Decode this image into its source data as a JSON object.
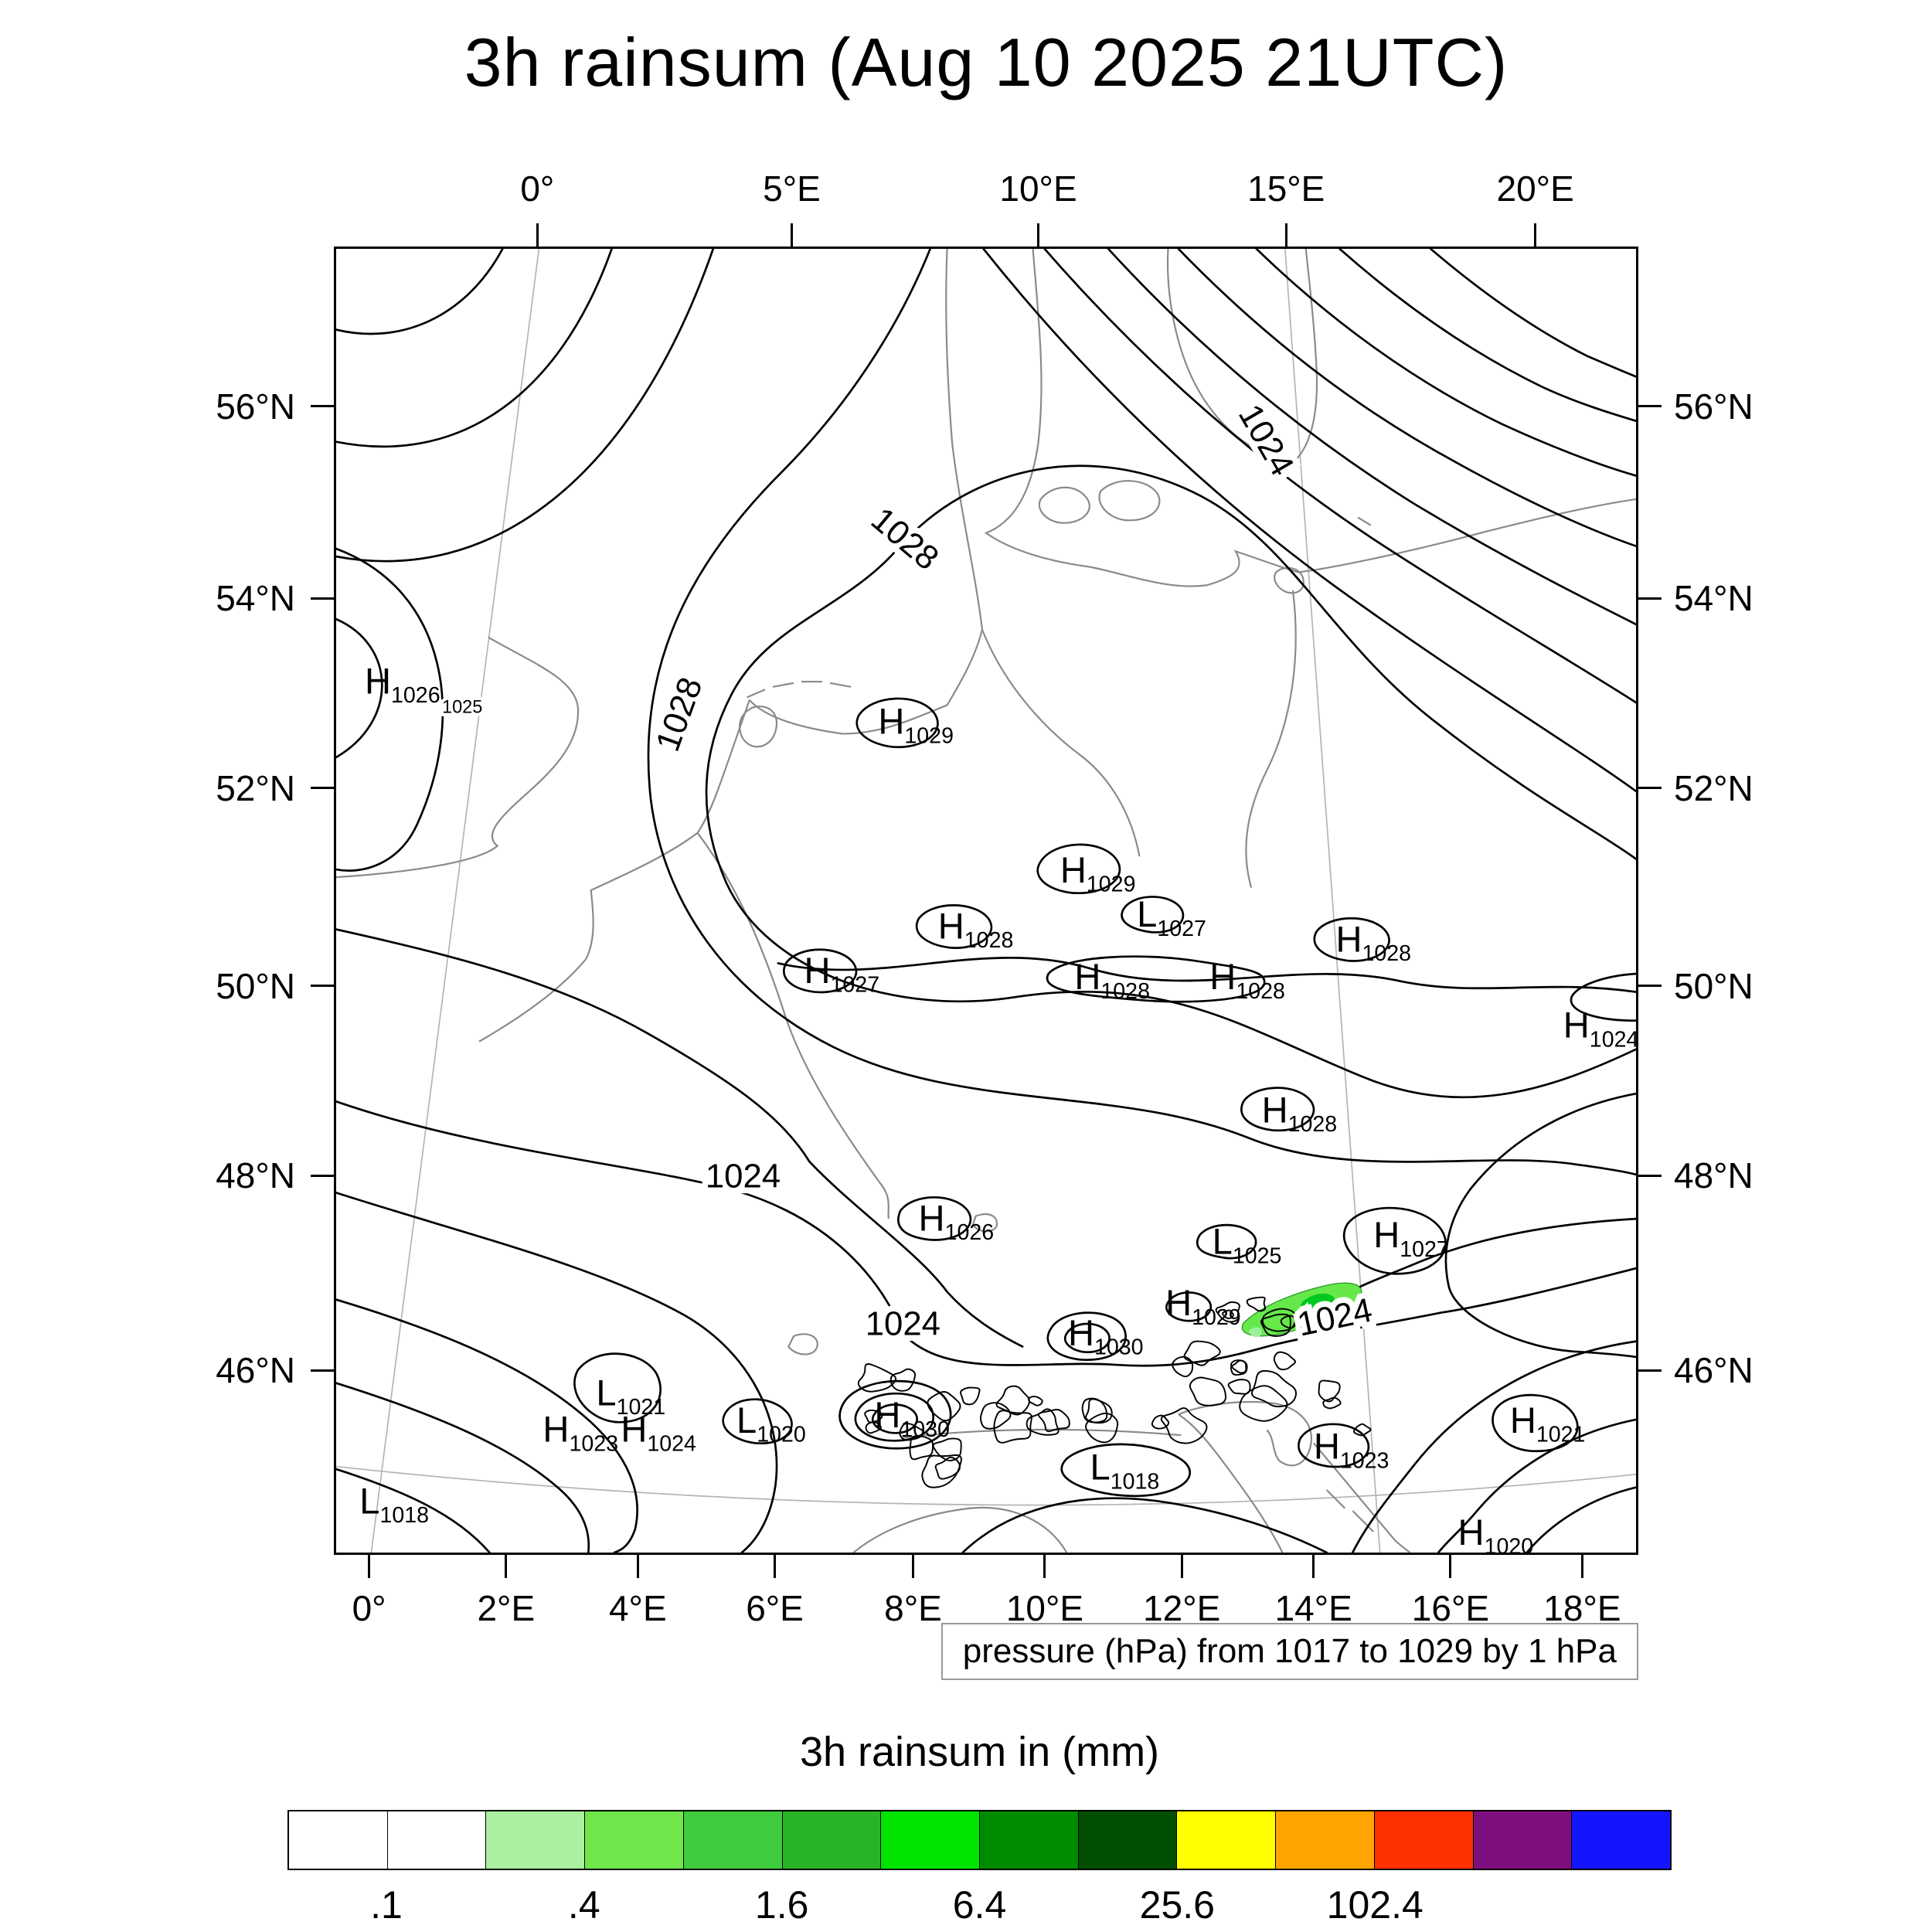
{
  "title": "3h rainsum (Aug 10 2025 21UTC)",
  "pressure_caption": "pressure (hPa) from 1017 to 1029 by 1 hPa",
  "colorbar": {
    "title": "3h rainsum in (mm)",
    "segments": [
      "#ffffff",
      "#ffffff",
      "#aaf0a0",
      "#70e64b",
      "#3ecb3e",
      "#28b428",
      "#00e400",
      "#008c00",
      "#004f00",
      "#ffff00",
      "#ffa400",
      "#ff3000",
      "#7d0e7d",
      "#1414ff"
    ],
    "tick_labels": [
      {
        "label": ".1",
        "boundary": 1
      },
      {
        "label": ".4",
        "boundary": 3
      },
      {
        "label": "1.6",
        "boundary": 5
      },
      {
        "label": "6.4",
        "boundary": 7
      },
      {
        "label": "25.6",
        "boundary": 9
      },
      {
        "label": "102.4",
        "boundary": 11
      }
    ]
  },
  "chart_data": {
    "type": "heatmap",
    "subtype": "weather_pressure_contour_map_with_rain_shading",
    "title": "3h rainsum (Aug 10 2025 21UTC)",
    "valid_time": "Aug 10 2025 21UTC",
    "contour_variable": "pressure (hPa)",
    "contour_levels": {
      "from": 1017,
      "to": 1029,
      "by": 1
    },
    "shading_variable": "3h rainsum in (mm)",
    "shading_level_boundaries": [
      0.1,
      0.2,
      0.4,
      0.8,
      1.6,
      3.2,
      6.4,
      12.8,
      25.6,
      51.2,
      102.4,
      204.8,
      409.6
    ],
    "shading_labeled_levels": [
      ".1",
      ".4",
      "1.6",
      "6.4",
      "25.6",
      "102.4"
    ],
    "axes": {
      "top": [
        {
          "label": "0°",
          "pos": 15.6
        },
        {
          "label": "5°E",
          "pos": 35.1
        },
        {
          "label": "10°E",
          "pos": 54.0
        },
        {
          "label": "15°E",
          "pos": 73.0
        },
        {
          "label": "20°E",
          "pos": 92.1
        }
      ],
      "bottom": [
        {
          "label": "0°",
          "pos": 2.7
        },
        {
          "label": "2°E",
          "pos": 13.2
        },
        {
          "label": "4°E",
          "pos": 23.3
        },
        {
          "label": "6°E",
          "pos": 33.8
        },
        {
          "label": "8°E",
          "pos": 44.4
        },
        {
          "label": "10°E",
          "pos": 54.5
        },
        {
          "label": "12°E",
          "pos": 65.0
        },
        {
          "label": "14°E",
          "pos": 75.1
        },
        {
          "label": "16°E",
          "pos": 85.6
        },
        {
          "label": "18°E",
          "pos": 95.7
        }
      ],
      "lat": [
        {
          "label": "56°N",
          "pos": 12.2
        },
        {
          "label": "54°N",
          "pos": 26.9
        },
        {
          "label": "52°N",
          "pos": 41.4
        },
        {
          "label": "50°N",
          "pos": 56.5
        },
        {
          "label": "48°N",
          "pos": 71.0
        },
        {
          "label": "46°N",
          "pos": 85.9
        }
      ]
    },
    "pressure_centers": [
      {
        "type": "H",
        "value": "1026",
        "x": 3.2,
        "y": 33.3
      },
      {
        "type": "H",
        "value": "1029",
        "x": 42.7,
        "y": 36.4
      },
      {
        "type": "H",
        "value": "1029",
        "x": 56.7,
        "y": 47.8
      },
      {
        "type": "L",
        "value": "1027",
        "x": 62.6,
        "y": 51.2
      },
      {
        "type": "H",
        "value": "1028",
        "x": 47.3,
        "y": 52.1
      },
      {
        "type": "H",
        "value": "1028",
        "x": 77.9,
        "y": 53.1
      },
      {
        "type": "H",
        "value": "1027",
        "x": 37.0,
        "y": 55.5
      },
      {
        "type": "H",
        "value": "1028",
        "x": 57.8,
        "y": 56.0
      },
      {
        "type": "H",
        "value": "1028",
        "x": 68.2,
        "y": 56.0
      },
      {
        "type": "H",
        "value": "1024",
        "x": 95.4,
        "y": 59.7
      },
      {
        "type": "H",
        "value": "1028",
        "x": 72.2,
        "y": 66.2
      },
      {
        "type": "H",
        "value": "1026",
        "x": 45.8,
        "y": 74.5
      },
      {
        "type": "L",
        "value": "1025",
        "x": 68.4,
        "y": 76.3
      },
      {
        "type": "H",
        "value": "1027",
        "x": 80.8,
        "y": 75.8
      },
      {
        "type": "H",
        "value": "1029",
        "x": 64.8,
        "y": 81.0
      },
      {
        "type": "H",
        "value": "1030",
        "x": 57.3,
        "y": 83.3
      },
      {
        "type": "L",
        "value": "1021",
        "x": 21.0,
        "y": 87.9
      },
      {
        "type": "H",
        "value": "1023",
        "x": 16.9,
        "y": 90.7
      },
      {
        "type": "H",
        "value": "1024",
        "x": 22.9,
        "y": 90.7
      },
      {
        "type": "L",
        "value": "1020",
        "x": 31.8,
        "y": 90.0
      },
      {
        "type": "H",
        "value": "1030",
        "x": 42.4,
        "y": 89.6
      },
      {
        "type": "L",
        "value": "1018",
        "x": 59.0,
        "y": 93.6
      },
      {
        "type": "H",
        "value": "1023",
        "x": 76.2,
        "y": 92.0
      },
      {
        "type": "H",
        "value": "1021",
        "x": 91.3,
        "y": 90.0
      },
      {
        "type": "L",
        "value": "1018",
        "x": 2.8,
        "y": 96.2
      },
      {
        "type": "H",
        "value": "1020",
        "x": 87.3,
        "y": 98.6
      }
    ],
    "contour_labels": [
      {
        "text": "1024",
        "x": 70.8,
        "y": 15.1,
        "rot": 60
      },
      {
        "text": "1028",
        "x": 43.2,
        "y": 22.9,
        "rot": 40
      },
      {
        "text": "1028",
        "x": 27.2,
        "y": 36.0,
        "rot": -70
      },
      {
        "text": "1025",
        "x": 9.7,
        "y": 35.6,
        "rot": 0,
        "small": true
      },
      {
        "text": "1024",
        "x": 31.3,
        "y": 72.0,
        "rot": 0
      },
      {
        "text": "1024",
        "x": 43.6,
        "y": 83.3,
        "rot": 0
      },
      {
        "text": "1024",
        "x": 77.0,
        "y": 82.8,
        "rot": -12
      }
    ],
    "rain_areas": [
      {
        "description": "light rain patch over eastern Alps",
        "x": 74,
        "y": 82
      }
    ]
  }
}
